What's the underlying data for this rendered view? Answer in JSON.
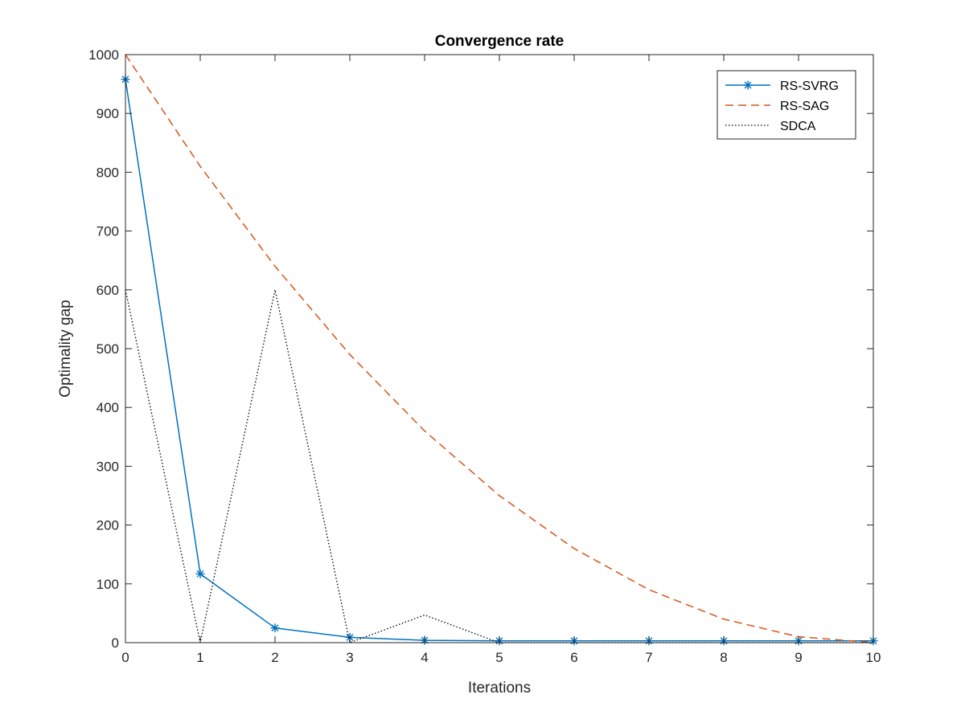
{
  "chart_data": {
    "type": "line",
    "title": "Convergence rate",
    "xlabel": "Iterations",
    "ylabel": "Optimality gap",
    "xlim": [
      0,
      10
    ],
    "ylim": [
      0,
      1000
    ],
    "xticks": [
      "0",
      "1",
      "2",
      "3",
      "4",
      "5",
      "6",
      "7",
      "8",
      "9",
      "10"
    ],
    "yticks": [
      "0",
      "100",
      "200",
      "300",
      "400",
      "500",
      "600",
      "700",
      "800",
      "900",
      "1000"
    ],
    "x": [
      0,
      1,
      2,
      3,
      4,
      5,
      6,
      7,
      8,
      9,
      10
    ],
    "grid": false,
    "legend_position": "top-right",
    "series": [
      {
        "name": "RS-SVRG",
        "values": [
          958,
          117,
          25,
          9,
          4,
          3,
          3,
          3,
          3,
          3,
          3
        ],
        "color": "#0072BD",
        "line_style": "solid",
        "marker": "asterisk"
      },
      {
        "name": "RS-SAG",
        "values": [
          1000,
          810,
          640,
          490,
          360,
          250,
          160,
          90,
          40,
          10,
          0
        ],
        "color": "#D95319",
        "line_style": "dashed",
        "marker": "none"
      },
      {
        "name": "SDCA",
        "values": [
          600,
          0,
          600,
          0,
          47,
          0,
          0,
          0,
          0,
          0,
          0
        ],
        "color": "#000000",
        "line_style": "dotted",
        "marker": "none"
      }
    ]
  }
}
